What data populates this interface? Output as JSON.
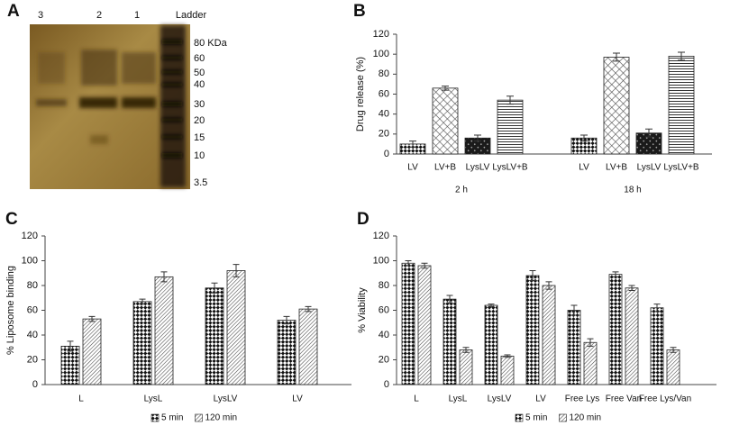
{
  "gel": {
    "panel": "A",
    "lanes": [
      "3",
      "2",
      "1",
      "Ladder"
    ],
    "markers": [
      "80 KDa",
      "60",
      "50",
      "40",
      "30",
      "20",
      "15",
      "10",
      "3.5"
    ]
  },
  "chart_data": [
    {
      "type": "bar",
      "panel": "B",
      "y_label": "Drug release (%)",
      "categories": [
        "LV",
        "LV+B",
        "LysLV",
        "LysLV+B",
        "LV",
        "LV+B",
        "LysLV",
        "LysLV+B"
      ],
      "groups": [
        "2 h",
        "18 h"
      ],
      "values": [
        10,
        66,
        16,
        54,
        16,
        97,
        21,
        98
      ],
      "errors": [
        3,
        2,
        3,
        4,
        3,
        4,
        4,
        4
      ],
      "ylim": [
        0,
        120
      ],
      "yticks": [
        0,
        20,
        40,
        60,
        80,
        100,
        120
      ]
    },
    {
      "type": "grouped_bar",
      "panel": "C",
      "y_label": "% Liposome binding",
      "categories": [
        "L",
        "LysL",
        "LysLV",
        "LV"
      ],
      "series": [
        {
          "name": "5 min",
          "values": [
            31,
            67,
            78,
            52
          ],
          "errors": [
            4,
            2,
            4,
            3
          ]
        },
        {
          "name": "120 min",
          "values": [
            53,
            87,
            92,
            61
          ],
          "errors": [
            2,
            4,
            5,
            2
          ]
        }
      ],
      "ylim": [
        0,
        120
      ],
      "yticks": [
        0,
        20,
        40,
        60,
        80,
        100,
        120
      ],
      "legend": "bottom"
    },
    {
      "type": "grouped_bar",
      "panel": "D",
      "y_label": "% Viability",
      "categories": [
        "L",
        "LysL",
        "LysLV",
        "LV",
        "Free Lys",
        "Free Van",
        "Free Lys/Van"
      ],
      "series": [
        {
          "name": "5 min",
          "values": [
            98,
            69,
            64,
            88,
            60,
            89,
            62
          ],
          "errors": [
            2,
            3,
            1,
            4,
            4,
            2,
            3
          ]
        },
        {
          "name": "120 min",
          "values": [
            96,
            28,
            23,
            80,
            34,
            78,
            28
          ],
          "errors": [
            2,
            2,
            1,
            3,
            3,
            2,
            2
          ]
        }
      ],
      "ylim": [
        0,
        120
      ],
      "yticks": [
        0,
        20,
        40,
        60,
        80,
        100,
        120
      ],
      "legend": "bottom"
    }
  ]
}
